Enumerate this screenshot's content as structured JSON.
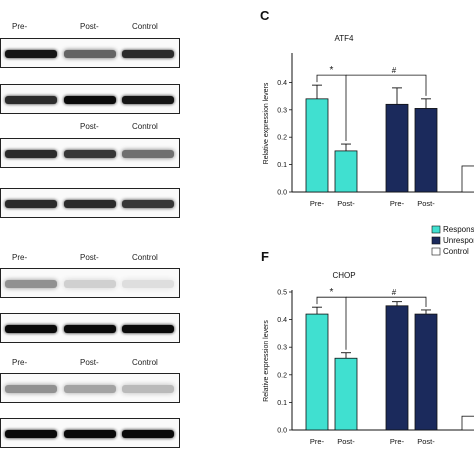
{
  "blots": [
    {
      "lane_labels": [
        "Pre-",
        "Post-",
        "Control"
      ],
      "rows": [
        {
          "intensities": [
            0.95,
            0.6,
            0.85
          ]
        },
        {
          "intensities": [
            0.85,
            1.0,
            0.95
          ]
        }
      ]
    },
    {
      "lane_labels": [
        "",
        "Post-",
        "Control"
      ],
      "rows": [
        {
          "intensities": [
            0.85,
            0.8,
            0.55
          ]
        },
        {
          "intensities": [
            0.85,
            0.85,
            0.8
          ]
        }
      ]
    },
    {
      "lane_labels": [
        "Pre-",
        "Post-",
        "Control"
      ],
      "rows": [
        {
          "intensities": [
            0.4,
            0.12,
            0.06
          ]
        },
        {
          "intensities": [
            1.0,
            1.0,
            1.0
          ]
        }
      ]
    },
    {
      "lane_labels": [
        "Pre-",
        "Post-",
        "Control"
      ],
      "rows": [
        {
          "intensities": [
            0.4,
            0.32,
            0.22
          ]
        },
        {
          "intensities": [
            1.0,
            1.0,
            1.0
          ]
        }
      ]
    }
  ],
  "panels": {
    "c": "C",
    "f": "F"
  },
  "legend": {
    "responsive": "Responsiv",
    "unresponsive": "Unrespons",
    "control": "Control"
  },
  "colors": {
    "responsive": "#40e0d0",
    "unresponsive": "#1b2a5c",
    "control": "#ffffff"
  },
  "chart_data": [
    {
      "type": "bar",
      "title": "ATF4",
      "ylabel": "Relative expression levers",
      "ylim": [
        0,
        0.5
      ],
      "yticks": [
        "0.0",
        "0.1",
        "0.2",
        "0.3",
        "0.4"
      ],
      "categories": [
        "Pre-",
        "Post-",
        "Pre-",
        "Post-",
        ""
      ],
      "values": [
        0.34,
        0.15,
        0.32,
        0.305,
        0.095
      ],
      "errors": [
        0.05,
        0.025,
        0.06,
        0.035,
        0
      ],
      "groups": [
        "responsive",
        "responsive",
        "unresponsive",
        "unresponsive",
        "control"
      ],
      "annotations": [
        "*",
        "#"
      ]
    },
    {
      "type": "bar",
      "title": "CHOP",
      "ylabel": "Relative expression levers",
      "ylim": [
        0,
        0.5
      ],
      "yticks": [
        "0.0",
        "0.1",
        "0.2",
        "0.3",
        "0.4",
        "0.5"
      ],
      "categories": [
        "Pre-",
        "Post-",
        "Pre-",
        "Post-",
        ""
      ],
      "values": [
        0.42,
        0.26,
        0.45,
        0.42,
        0.05
      ],
      "errors": [
        0.025,
        0.02,
        0.015,
        0.015,
        0
      ],
      "groups": [
        "responsive",
        "responsive",
        "unresponsive",
        "unresponsive",
        "control"
      ],
      "annotations": [
        "*",
        "#"
      ]
    }
  ]
}
